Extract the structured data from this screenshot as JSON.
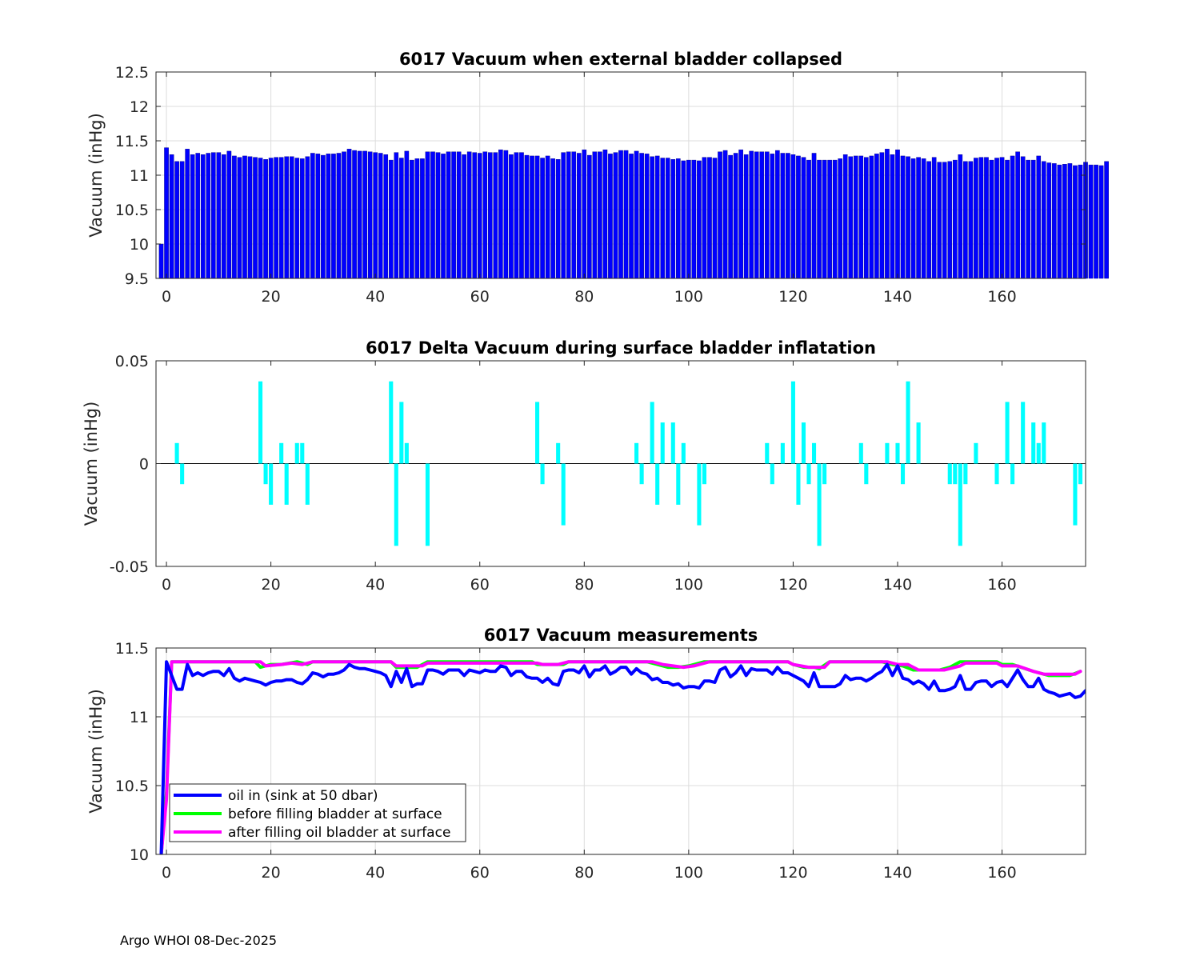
{
  "footer": "Argo WHOI 08-Dec-2025",
  "chart_data": [
    {
      "type": "bar",
      "title": "6017 Vacuum when external bladder collapsed",
      "ylabel": "Vacuum (inHg)",
      "xlabel": "",
      "xlim": [
        -2,
        176
      ],
      "ylim": [
        9.5,
        12.5
      ],
      "xticks": [
        0,
        20,
        40,
        60,
        80,
        100,
        120,
        140,
        160
      ],
      "yticks": [
        9.5,
        10,
        10.5,
        11,
        11.5,
        12,
        12.5
      ],
      "ytick_labels": [
        "9.5",
        "10",
        "10.5",
        "11",
        "11.5",
        "12",
        "12.5"
      ],
      "grid": true,
      "color": "#0000ff",
      "x_start": -1,
      "values": [
        10.0,
        11.4,
        11.3,
        11.2,
        11.2,
        11.38,
        11.3,
        11.32,
        11.3,
        11.32,
        11.33,
        11.33,
        11.3,
        11.35,
        11.28,
        11.26,
        11.28,
        11.27,
        11.26,
        11.25,
        11.23,
        11.25,
        11.26,
        11.26,
        11.27,
        11.27,
        11.25,
        11.24,
        11.27,
        11.32,
        11.31,
        11.29,
        11.31,
        11.31,
        11.32,
        11.34,
        11.38,
        11.36,
        11.35,
        11.35,
        11.34,
        11.33,
        11.32,
        11.3,
        11.22,
        11.33,
        11.25,
        11.35,
        11.22,
        11.24,
        11.24,
        11.34,
        11.34,
        11.33,
        11.31,
        11.34,
        11.34,
        11.34,
        11.3,
        11.34,
        11.33,
        11.32,
        11.34,
        11.33,
        11.33,
        11.37,
        11.36,
        11.3,
        11.33,
        11.33,
        11.29,
        11.28,
        11.28,
        11.25,
        11.28,
        11.24,
        11.23,
        11.33,
        11.34,
        11.34,
        11.32,
        11.37,
        11.29,
        11.34,
        11.34,
        11.37,
        11.31,
        11.33,
        11.36,
        11.36,
        11.31,
        11.35,
        11.32,
        11.31,
        11.27,
        11.28,
        11.25,
        11.25,
        11.23,
        11.24,
        11.21,
        11.22,
        11.22,
        11.21,
        11.26,
        11.26,
        11.25,
        11.34,
        11.36,
        11.29,
        11.32,
        11.37,
        11.3,
        11.35,
        11.34,
        11.34,
        11.34,
        11.31,
        11.36,
        11.32,
        11.32,
        11.3,
        11.28,
        11.26,
        11.22,
        11.32,
        11.22,
        11.22,
        11.22,
        11.22,
        11.24,
        11.3,
        11.27,
        11.28,
        11.28,
        11.26,
        11.28,
        11.31,
        11.33,
        11.38,
        11.3,
        11.37,
        11.28,
        11.27,
        11.24,
        11.26,
        11.24,
        11.2,
        11.26,
        11.19,
        11.19,
        11.2,
        11.22,
        11.3,
        11.2,
        11.2,
        11.25,
        11.26,
        11.26,
        11.22,
        11.25,
        11.26,
        11.22,
        11.28,
        11.34,
        11.27,
        11.22,
        11.22,
        11.28,
        11.2,
        11.18,
        11.17,
        11.15,
        11.16,
        11.17,
        11.14,
        11.15,
        11.19,
        11.15,
        11.15,
        11.14,
        11.2
      ]
    },
    {
      "type": "bar",
      "title": "6017 Delta Vacuum during surface bladder inflatation",
      "ylabel": "Vacuum (inHg)",
      "xlabel": "",
      "xlim": [
        -2,
        176
      ],
      "ylim": [
        -0.05,
        0.05
      ],
      "xticks": [
        0,
        20,
        40,
        60,
        80,
        100,
        120,
        140,
        160
      ],
      "yticks": [
        -0.05,
        0,
        0.05
      ],
      "ytick_labels": [
        "-0.05",
        "0",
        "0.05"
      ],
      "grid": false,
      "color": "#00ffff",
      "points": [
        [
          2,
          0.01
        ],
        [
          3,
          -0.01
        ],
        [
          18,
          0.04
        ],
        [
          19,
          -0.01
        ],
        [
          20,
          -0.02
        ],
        [
          22,
          0.01
        ],
        [
          23,
          -0.02
        ],
        [
          25,
          0.01
        ],
        [
          26,
          0.01
        ],
        [
          27,
          -0.02
        ],
        [
          43,
          0.04
        ],
        [
          44,
          -0.04
        ],
        [
          45,
          0.03
        ],
        [
          46,
          0.01
        ],
        [
          50,
          -0.04
        ],
        [
          71,
          0.03
        ],
        [
          72,
          -0.01
        ],
        [
          75,
          0.01
        ],
        [
          76,
          -0.03
        ],
        [
          90,
          0.01
        ],
        [
          91,
          -0.01
        ],
        [
          93,
          0.03
        ],
        [
          94,
          -0.02
        ],
        [
          95,
          0.02
        ],
        [
          97,
          0.02
        ],
        [
          98,
          -0.02
        ],
        [
          99,
          0.01
        ],
        [
          102,
          -0.03
        ],
        [
          103,
          -0.01
        ],
        [
          115,
          0.01
        ],
        [
          116,
          -0.01
        ],
        [
          118,
          0.01
        ],
        [
          120,
          0.04
        ],
        [
          121,
          -0.02
        ],
        [
          122,
          0.02
        ],
        [
          123,
          -0.01
        ],
        [
          124,
          0.01
        ],
        [
          125,
          -0.04
        ],
        [
          126,
          -0.01
        ],
        [
          133,
          0.01
        ],
        [
          134,
          -0.01
        ],
        [
          138,
          0.01
        ],
        [
          140,
          0.01
        ],
        [
          141,
          -0.01
        ],
        [
          142,
          0.04
        ],
        [
          144,
          0.02
        ],
        [
          150,
          -0.01
        ],
        [
          151,
          -0.01
        ],
        [
          152,
          -0.04
        ],
        [
          153,
          -0.01
        ],
        [
          155,
          0.01
        ],
        [
          159,
          -0.01
        ],
        [
          161,
          0.03
        ],
        [
          162,
          -0.01
        ],
        [
          164,
          0.03
        ],
        [
          166,
          0.02
        ],
        [
          167,
          0.01
        ],
        [
          168,
          0.02
        ],
        [
          174,
          -0.03
        ],
        [
          175,
          -0.01
        ]
      ]
    },
    {
      "type": "line",
      "title": "6017 Vacuum measurements",
      "ylabel": "Vacuum (inHg)",
      "xlabel": "",
      "xlim": [
        -2,
        176
      ],
      "ylim": [
        10,
        11.5
      ],
      "xticks": [
        0,
        20,
        40,
        60,
        80,
        100,
        120,
        140,
        160
      ],
      "yticks": [
        10,
        10.5,
        11,
        11.5
      ],
      "ytick_labels": [
        "10",
        "10.5",
        "11",
        "11.5"
      ],
      "grid": true,
      "legend": "bottom-left",
      "series": [
        {
          "name": "oil in (sink at 50 dbar)",
          "color": "#0000ff",
          "ref": "bars"
        },
        {
          "name": "before filling bladder at surface",
          "color": "#00ff00",
          "points": [
            [
              -1,
              10.0
            ],
            [
              0,
              10.45
            ],
            [
              1,
              11.4
            ],
            [
              17,
              11.4
            ],
            [
              18,
              11.36
            ],
            [
              20,
              11.38
            ],
            [
              22,
              11.38
            ],
            [
              25,
              11.4
            ],
            [
              27,
              11.38
            ],
            [
              28,
              11.4
            ],
            [
              43,
              11.4
            ],
            [
              44,
              11.36
            ],
            [
              46,
              11.36
            ],
            [
              48,
              11.36
            ],
            [
              50,
              11.4
            ],
            [
              70,
              11.4
            ],
            [
              71,
              11.38
            ],
            [
              76,
              11.38
            ],
            [
              77,
              11.4
            ],
            [
              92,
              11.4
            ],
            [
              94,
              11.38
            ],
            [
              96,
              11.36
            ],
            [
              98,
              11.36
            ],
            [
              100,
              11.37
            ],
            [
              103,
              11.4
            ],
            [
              119,
              11.4
            ],
            [
              120,
              11.38
            ],
            [
              122,
              11.36
            ],
            [
              124,
              11.36
            ],
            [
              125,
              11.35
            ],
            [
              127,
              11.4
            ],
            [
              137,
              11.4
            ],
            [
              139,
              11.38
            ],
            [
              141,
              11.37
            ],
            [
              143,
              11.34
            ],
            [
              148,
              11.34
            ],
            [
              150,
              11.36
            ],
            [
              152,
              11.4
            ],
            [
              159,
              11.4
            ],
            [
              160,
              11.38
            ],
            [
              162,
              11.38
            ],
            [
              166,
              11.33
            ],
            [
              169,
              11.3
            ],
            [
              173,
              11.3
            ],
            [
              175,
              11.33
            ]
          ]
        },
        {
          "name": "after filling oil bladder at surface",
          "color": "#ff00ff",
          "points": [
            [
              -1,
              10.0
            ],
            [
              0,
              10.4
            ],
            [
              1,
              11.4
            ],
            [
              18,
              11.4
            ],
            [
              19,
              11.37
            ],
            [
              22,
              11.38
            ],
            [
              24,
              11.39
            ],
            [
              26,
              11.38
            ],
            [
              28,
              11.4
            ],
            [
              43,
              11.4
            ],
            [
              44,
              11.37
            ],
            [
              49,
              11.37
            ],
            [
              50,
              11.39
            ],
            [
              71,
              11.39
            ],
            [
              72,
              11.38
            ],
            [
              75,
              11.38
            ],
            [
              77,
              11.4
            ],
            [
              93,
              11.4
            ],
            [
              95,
              11.38
            ],
            [
              97,
              11.37
            ],
            [
              99,
              11.36
            ],
            [
              101,
              11.37
            ],
            [
              103,
              11.39
            ],
            [
              104,
              11.4
            ],
            [
              119,
              11.4
            ],
            [
              120,
              11.38
            ],
            [
              123,
              11.36
            ],
            [
              126,
              11.36
            ],
            [
              127,
              11.4
            ],
            [
              138,
              11.4
            ],
            [
              140,
              11.38
            ],
            [
              142,
              11.38
            ],
            [
              144,
              11.34
            ],
            [
              149,
              11.34
            ],
            [
              152,
              11.37
            ],
            [
              153,
              11.39
            ],
            [
              159,
              11.39
            ],
            [
              160,
              11.37
            ],
            [
              163,
              11.37
            ],
            [
              166,
              11.33
            ],
            [
              168,
              11.31
            ],
            [
              171,
              11.31
            ],
            [
              174,
              11.31
            ],
            [
              175,
              11.33
            ]
          ]
        }
      ]
    }
  ]
}
